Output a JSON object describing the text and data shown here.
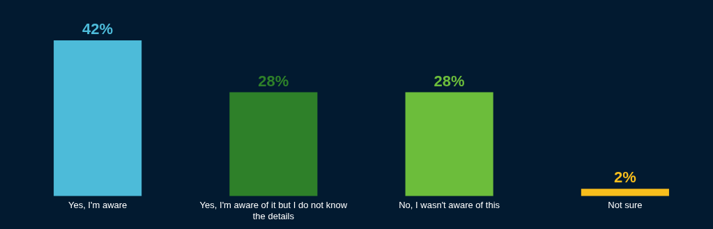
{
  "chart_data": {
    "type": "bar",
    "categories": [
      "Yes, I'm aware",
      "Yes, I'm aware of it but I do not know the details",
      "No, I wasn't aware of this",
      "Not sure"
    ],
    "values": [
      42,
      28,
      28,
      2
    ],
    "colors": [
      "#4dbbd9",
      "#2e8029",
      "#6cbd3b",
      "#f8be1c"
    ],
    "value_labels": [
      "42%",
      "28%",
      "28%",
      "2%"
    ]
  }
}
